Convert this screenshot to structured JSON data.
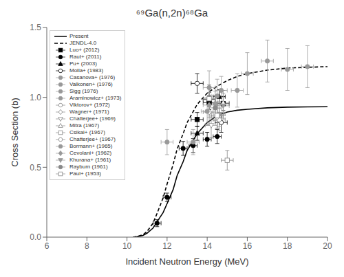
{
  "chart_data": {
    "type": "line",
    "title": "⁶⁹Ga(n,2n)⁶⁸Ga",
    "xlabel": "Incident Neutron Energy (MeV)",
    "ylabel": "Cross Section (b)",
    "xlim": [
      6,
      20
    ],
    "ylim": [
      0,
      1.5
    ],
    "xticks": [
      6,
      8,
      10,
      12,
      14,
      16,
      18,
      20
    ],
    "yticks": [
      {
        "value": 0,
        "label": "0.0"
      },
      0.5,
      {
        "value": 1,
        "label": "1.0"
      },
      1.5
    ],
    "grid": false,
    "legend": "upper left",
    "series": [
      {
        "name": "Present",
        "type": "line",
        "line_style": "solid",
        "color": "#000000",
        "x": [
          10.3,
          10.5,
          10.8,
          11.0,
          11.3,
          11.5,
          11.8,
          12.0,
          12.3,
          12.5,
          12.8,
          13.0,
          13.5,
          14.0,
          14.5,
          15.0,
          15.5,
          16.0,
          17.0,
          18.0,
          19.0,
          20.0
        ],
        "values": [
          0.0,
          0.003,
          0.012,
          0.028,
          0.065,
          0.11,
          0.175,
          0.24,
          0.34,
          0.44,
          0.54,
          0.62,
          0.74,
          0.82,
          0.87,
          0.895,
          0.908,
          0.915,
          0.925,
          0.93,
          0.932,
          0.933
        ]
      },
      {
        "name": "JENDL-4.0",
        "type": "line",
        "line_style": "dashed",
        "color": "#000000",
        "x": [
          10.3,
          10.5,
          10.8,
          11.0,
          11.3,
          11.5,
          11.8,
          12.0,
          12.3,
          12.5,
          12.8,
          13.0,
          13.5,
          14.0,
          14.5,
          15.0,
          15.5,
          16.0,
          17.0,
          18.0,
          19.0,
          20.0
        ],
        "values": [
          0.0,
          0.004,
          0.018,
          0.04,
          0.1,
          0.17,
          0.28,
          0.38,
          0.52,
          0.63,
          0.74,
          0.82,
          0.95,
          1.03,
          1.08,
          1.12,
          1.15,
          1.17,
          1.195,
          1.21,
          1.215,
          1.22
        ]
      },
      {
        "name": "Luo+ (2012)",
        "type": "scatter",
        "marker": "square",
        "color": "#000000",
        "x": [
          13.5,
          14.1,
          14.8
        ],
        "values": [
          0.842,
          0.962,
          0.955
        ],
        "xerr": [
          0.3,
          0.3,
          0.3
        ],
        "yerr": [
          0.05,
          0.05,
          0.05
        ]
      },
      {
        "name": "Raut+ (2011)",
        "type": "scatter",
        "marker": "circle",
        "color": "#000000",
        "x": [
          11.5,
          12.0,
          12.8,
          13.3,
          14.0,
          14.5
        ],
        "values": [
          0.1,
          0.285,
          0.635,
          0.655,
          0.7,
          0.72
        ],
        "xerr": [
          0.2,
          0.2,
          0.2,
          0.2,
          0.2,
          0.2
        ],
        "yerr": [
          0.025,
          0.03,
          0.05,
          0.05,
          0.05,
          0.05
        ]
      },
      {
        "name": "Pu+ (2003)",
        "type": "scatter",
        "marker": "triangle-up",
        "color": "#000000",
        "x": [
          13.5,
          14.1,
          14.6
        ],
        "values": [
          0.743,
          0.985,
          1.005
        ],
        "xerr": [
          0.3,
          0.3,
          0.3
        ],
        "yerr": [
          0.05,
          0.05,
          0.05
        ]
      },
      {
        "name": "Molla+ (1983)",
        "type": "scatter",
        "marker": "circle-open",
        "color": "#000000",
        "x": [
          13.5,
          14.7
        ],
        "values": [
          1.1,
          0.82
        ],
        "xerr": [
          0.3,
          0.3
        ],
        "yerr": [
          0.07,
          0.07
        ]
      },
      {
        "name": "Casanova+ (1976)",
        "type": "scatter",
        "marker": "circle",
        "color": "#999999",
        "x": [
          14.1
        ],
        "values": [
          1.07
        ],
        "xerr": [
          0.3
        ],
        "yerr": [
          0.12
        ]
      },
      {
        "name": "Valkonen+ (1976)",
        "type": "scatter",
        "marker": "circle",
        "color": "#999999",
        "x": [
          14.7
        ],
        "values": [
          1.05
        ],
        "xerr": [
          0.3
        ],
        "yerr": [
          0.1
        ]
      },
      {
        "name": "Sigg (1976)",
        "type": "scatter",
        "marker": "circle",
        "color": "#999999",
        "x": [
          14.4
        ],
        "values": [
          0.955
        ],
        "xerr": [
          0.3
        ],
        "yerr": [
          0.09
        ]
      },
      {
        "name": "Araminowicz+ (1973)",
        "type": "scatter",
        "marker": "circle",
        "color": "#999999",
        "x": [
          14.6
        ],
        "values": [
          0.88
        ],
        "xerr": [
          0.3
        ],
        "yerr": [
          0.09
        ]
      },
      {
        "name": "Viktorov+ (1972)",
        "type": "scatter",
        "marker": "circle-open",
        "color": "#888888",
        "x": [
          14.6
        ],
        "values": [
          0.84
        ],
        "xerr": [
          0.3
        ],
        "yerr": [
          0.08
        ]
      },
      {
        "name": "Wagner+ (1971)",
        "type": "scatter",
        "marker": "diamond-open",
        "color": "#888888",
        "x": [
          14.1
        ],
        "values": [
          0.895
        ],
        "xerr": [
          0.3
        ],
        "yerr": [
          0.09
        ]
      },
      {
        "name": "Chatterjee+ (1969)",
        "type": "scatter",
        "marker": "triangle-down-open",
        "color": "#888888",
        "x": [
          14.2
        ],
        "values": [
          0.8
        ],
        "xerr": [
          0.3
        ],
        "yerr": [
          0.09
        ]
      },
      {
        "name": "Mitra (1967)",
        "type": "scatter",
        "marker": "triangle-up-open",
        "color": "#888888",
        "x": [
          14.8
        ],
        "values": [
          0.96
        ],
        "xerr": [
          0.3
        ],
        "yerr": [
          0.09
        ]
      },
      {
        "name": "Csikai+ (1967)",
        "type": "scatter",
        "marker": "square-open",
        "color": "#888888",
        "x": [
          14.1,
          15.0
        ],
        "values": [
          0.99,
          0.55
        ],
        "xerr": [
          0.3,
          0.3
        ],
        "yerr": [
          0.1,
          0.07
        ]
      },
      {
        "name": "Chatterjee+ (1967)",
        "type": "scatter",
        "marker": "circle-open",
        "color": "#888888",
        "x": [
          14.5
        ],
        "values": [
          0.86
        ],
        "xerr": [
          0.3
        ],
        "yerr": [
          0.08
        ]
      },
      {
        "name": "Bormann+ (1965)",
        "type": "scatter",
        "marker": "circle",
        "color": "#999999",
        "x": [
          12.0,
          13.3,
          14.0,
          14.5,
          15.5,
          16.0,
          17.0,
          18.0,
          19.0
        ],
        "values": [
          0.68,
          0.68,
          0.9,
          1.01,
          1.05,
          1.17,
          1.26,
          1.2,
          1.22
        ],
        "xerr": [
          0.3,
          0.3,
          0.3,
          0.3,
          0.3,
          0.3,
          0.3,
          0.3,
          0.3
        ],
        "yerr": [
          0.09,
          0.09,
          0.1,
          0.12,
          0.12,
          0.15,
          0.15,
          0.15,
          0.15
        ]
      },
      {
        "name": "Cevolani+ (1962)",
        "type": "scatter",
        "marker": "diamond",
        "color": "#999999",
        "x": [
          14.1
        ],
        "values": [
          0.945
        ],
        "xerr": [
          0.3
        ],
        "yerr": [
          0.09
        ]
      },
      {
        "name": "Khurana+ (1961)",
        "type": "scatter",
        "marker": "triangle-down",
        "color": "#999999",
        "x": [
          14.8
        ],
        "values": [
          0.94
        ],
        "xerr": [
          0.3
        ],
        "yerr": [
          0.09
        ]
      },
      {
        "name": "Rayburn (1961)",
        "type": "scatter",
        "marker": "circle",
        "color": "#888888",
        "x": [
          14.4
        ],
        "values": [
          0.925
        ],
        "xerr": [
          0.3
        ],
        "yerr": [
          0.09
        ]
      },
      {
        "name": "Paul+ (1953)",
        "type": "scatter",
        "marker": "square-open",
        "color": "#888888",
        "x": [
          14.5
        ],
        "values": [
          0.87
        ],
        "xerr": [
          0.3
        ],
        "yerr": [
          0.09
        ]
      }
    ]
  }
}
